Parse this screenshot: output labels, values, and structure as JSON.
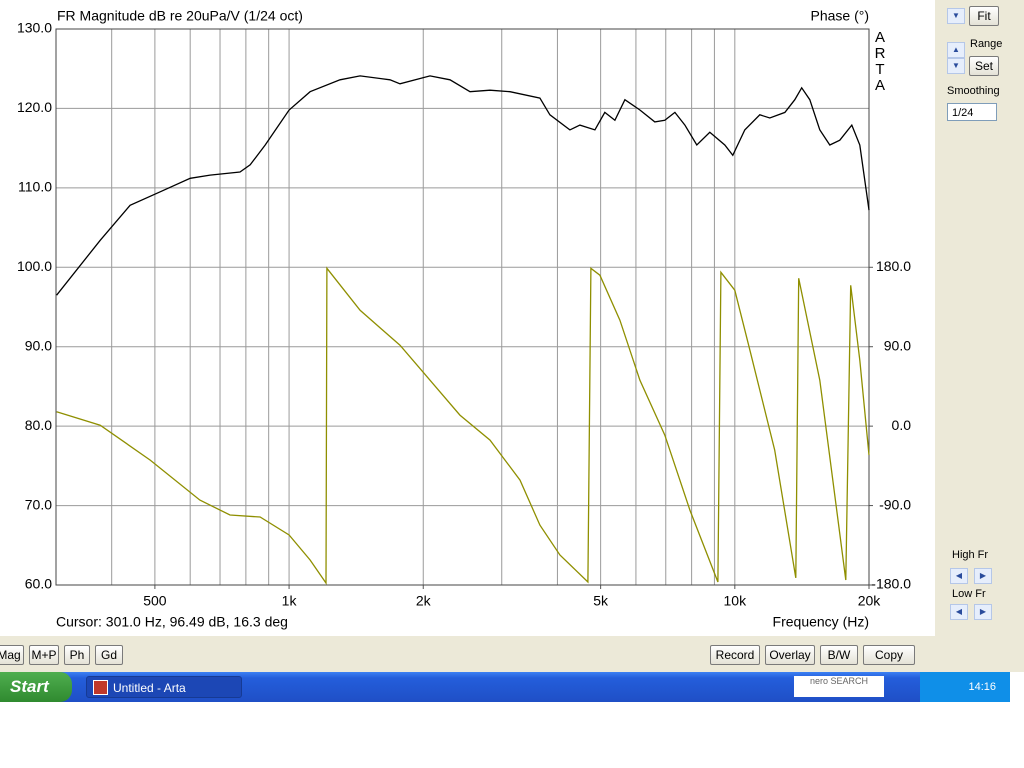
{
  "chart_data": {
    "type": "line",
    "title": "FR Magnitude dB re 20uPa/V (1/24 oct)",
    "y2_title": "Phase (°)",
    "logo": "ARTA",
    "cursor": "Cursor: 301.0 Hz, 96.49 dB, 16.3 deg",
    "x_label": "Frequency (Hz)",
    "xlog": true,
    "grid": true,
    "xlim": [
      300,
      20000
    ],
    "xticks": [
      500,
      {
        "value": 1000,
        "label": "1k"
      },
      {
        "value": 2000,
        "label": "2k"
      },
      {
        "value": 5000,
        "label": "5k"
      },
      {
        "value": 10000,
        "label": "10k"
      },
      {
        "value": 20000,
        "label": "20k"
      }
    ],
    "xgrid": [
      400,
      500,
      600,
      700,
      800,
      900,
      1000,
      2000,
      3000,
      4000,
      5000,
      6000,
      7000,
      8000,
      9000,
      10000
    ],
    "ylim": [
      60,
      130
    ],
    "yticks": [
      {
        "value": 60,
        "label": "60.0"
      },
      {
        "value": 70,
        "label": "70.0"
      },
      {
        "value": 80,
        "label": "80.0"
      },
      {
        "value": 90,
        "label": "90.0"
      },
      {
        "value": 100,
        "label": "100.0"
      },
      {
        "value": 110,
        "label": "110.0"
      },
      {
        "value": 120,
        "label": "120.0"
      },
      {
        "value": 130,
        "label": "130.0"
      }
    ],
    "y2lim": [
      -180,
      450
    ],
    "y2ticks": [
      {
        "value": -180,
        "label": "-180.0"
      },
      {
        "value": -90,
        "label": "-90.0"
      },
      {
        "value": 0,
        "label": "0.0"
      },
      {
        "value": 90,
        "label": "90.0"
      },
      {
        "value": 180,
        "label": "180.0"
      }
    ],
    "series": [
      {
        "color": "#000000",
        "x": [
          301,
          377,
          440,
          514,
          600,
          665,
          776,
          818,
          884,
          1000,
          1115,
          1301,
          1443,
          1684,
          1774,
          2071,
          2296,
          2546,
          2823,
          3130,
          3654,
          3848,
          4266,
          4492,
          4855,
          5110,
          5382,
          5667,
          6124,
          6616,
          6966,
          7337,
          7726,
          8219,
          8788,
          9497,
          9897,
          10530,
          11380,
          11980,
          12950,
          13630,
          14130,
          14730,
          15510,
          16330,
          17200,
          18300,
          19070,
          20000
        ],
        "values": [
          96.49,
          103.4,
          107.8,
          109.5,
          111.2,
          111.6,
          112.0,
          112.9,
          115.4,
          119.8,
          122.1,
          123.6,
          124.1,
          123.6,
          123.1,
          124.1,
          123.6,
          122.1,
          122.3,
          122.1,
          121.3,
          119.2,
          117.3,
          117.9,
          117.3,
          119.5,
          118.5,
          121.1,
          119.8,
          118.3,
          118.5,
          119.5,
          117.9,
          115.4,
          117.0,
          115.4,
          114.1,
          117.3,
          119.2,
          118.8,
          119.5,
          121.1,
          122.6,
          121.1,
          117.3,
          115.4,
          116.0,
          117.9,
          115.4,
          107.2
        ]
      },
      {
        "color": "#8f8f00",
        "axis": "y2",
        "x": [
          301,
          377,
          488,
          631,
          737,
          861,
          1000,
          1115,
          1210,
          1216,
          1443,
          1774,
          2071,
          2417,
          2823,
          3296,
          3654,
          4051,
          4682,
          4755,
          4981,
          5523,
          6124,
          6966,
          7930,
          9161,
          9304,
          10000,
          10810,
          12290,
          13700,
          13910,
          15510,
          17740,
          18200,
          19070,
          20000
        ],
        "values": [
          16.3,
          1.1,
          -38.5,
          -83.8,
          -100.7,
          -103,
          -123.4,
          -151.7,
          -177.7,
          178.9,
          131.3,
          91.7,
          52.1,
          12.5,
          -15.8,
          -61.1,
          -112.1,
          -146.0,
          -176.6,
          178.9,
          171.0,
          120.0,
          52.1,
          -10.2,
          -95.1,
          -176.6,
          174.3,
          154.0,
          86.0,
          -27.2,
          -172.0,
          167.5,
          52.1,
          -174.3,
          159.6,
          74.7,
          -32.8
        ]
      }
    ]
  },
  "side_panel": {
    "fit": "Fit",
    "range": "Range",
    "set": "Set",
    "smoothing": "Smoothing",
    "smoothing_value": "1/24",
    "high_fr": "High Fr",
    "low_fr": "Low Fr"
  },
  "toolbar": {
    "left": [
      "Mag",
      "M+P",
      "Ph",
      "Gd"
    ],
    "right": [
      "Record",
      "Overlay",
      "B/W",
      "Copy"
    ]
  },
  "taskbar": {
    "start": "Start",
    "window": "Untitled - Arta",
    "search": "nero SEARCH",
    "clock": "14:16"
  }
}
